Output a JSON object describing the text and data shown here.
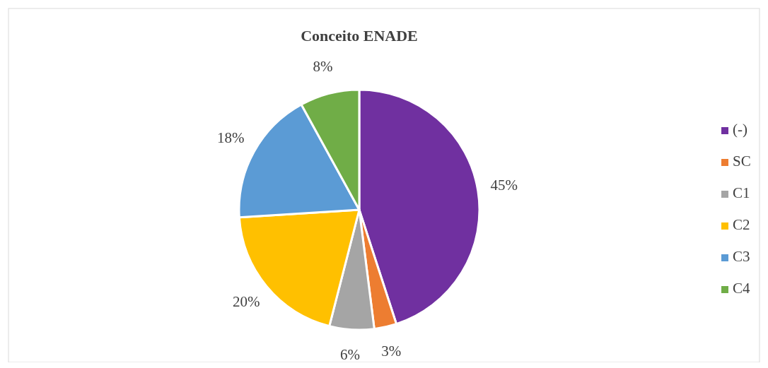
{
  "chart_data": {
    "type": "pie",
    "title": "Conceito ENADE",
    "categories": [
      "(-)",
      "SC",
      "C1",
      "C2",
      "C3",
      "C4"
    ],
    "values": [
      45,
      3,
      6,
      20,
      18,
      8
    ],
    "colors": [
      "#7030a0",
      "#ed7d31",
      "#a5a5a5",
      "#ffc000",
      "#5b9bd5",
      "#70ad47"
    ],
    "value_labels": [
      "45%",
      "3%",
      "6%",
      "20%",
      "18%",
      "8%"
    ],
    "legend": "right"
  }
}
